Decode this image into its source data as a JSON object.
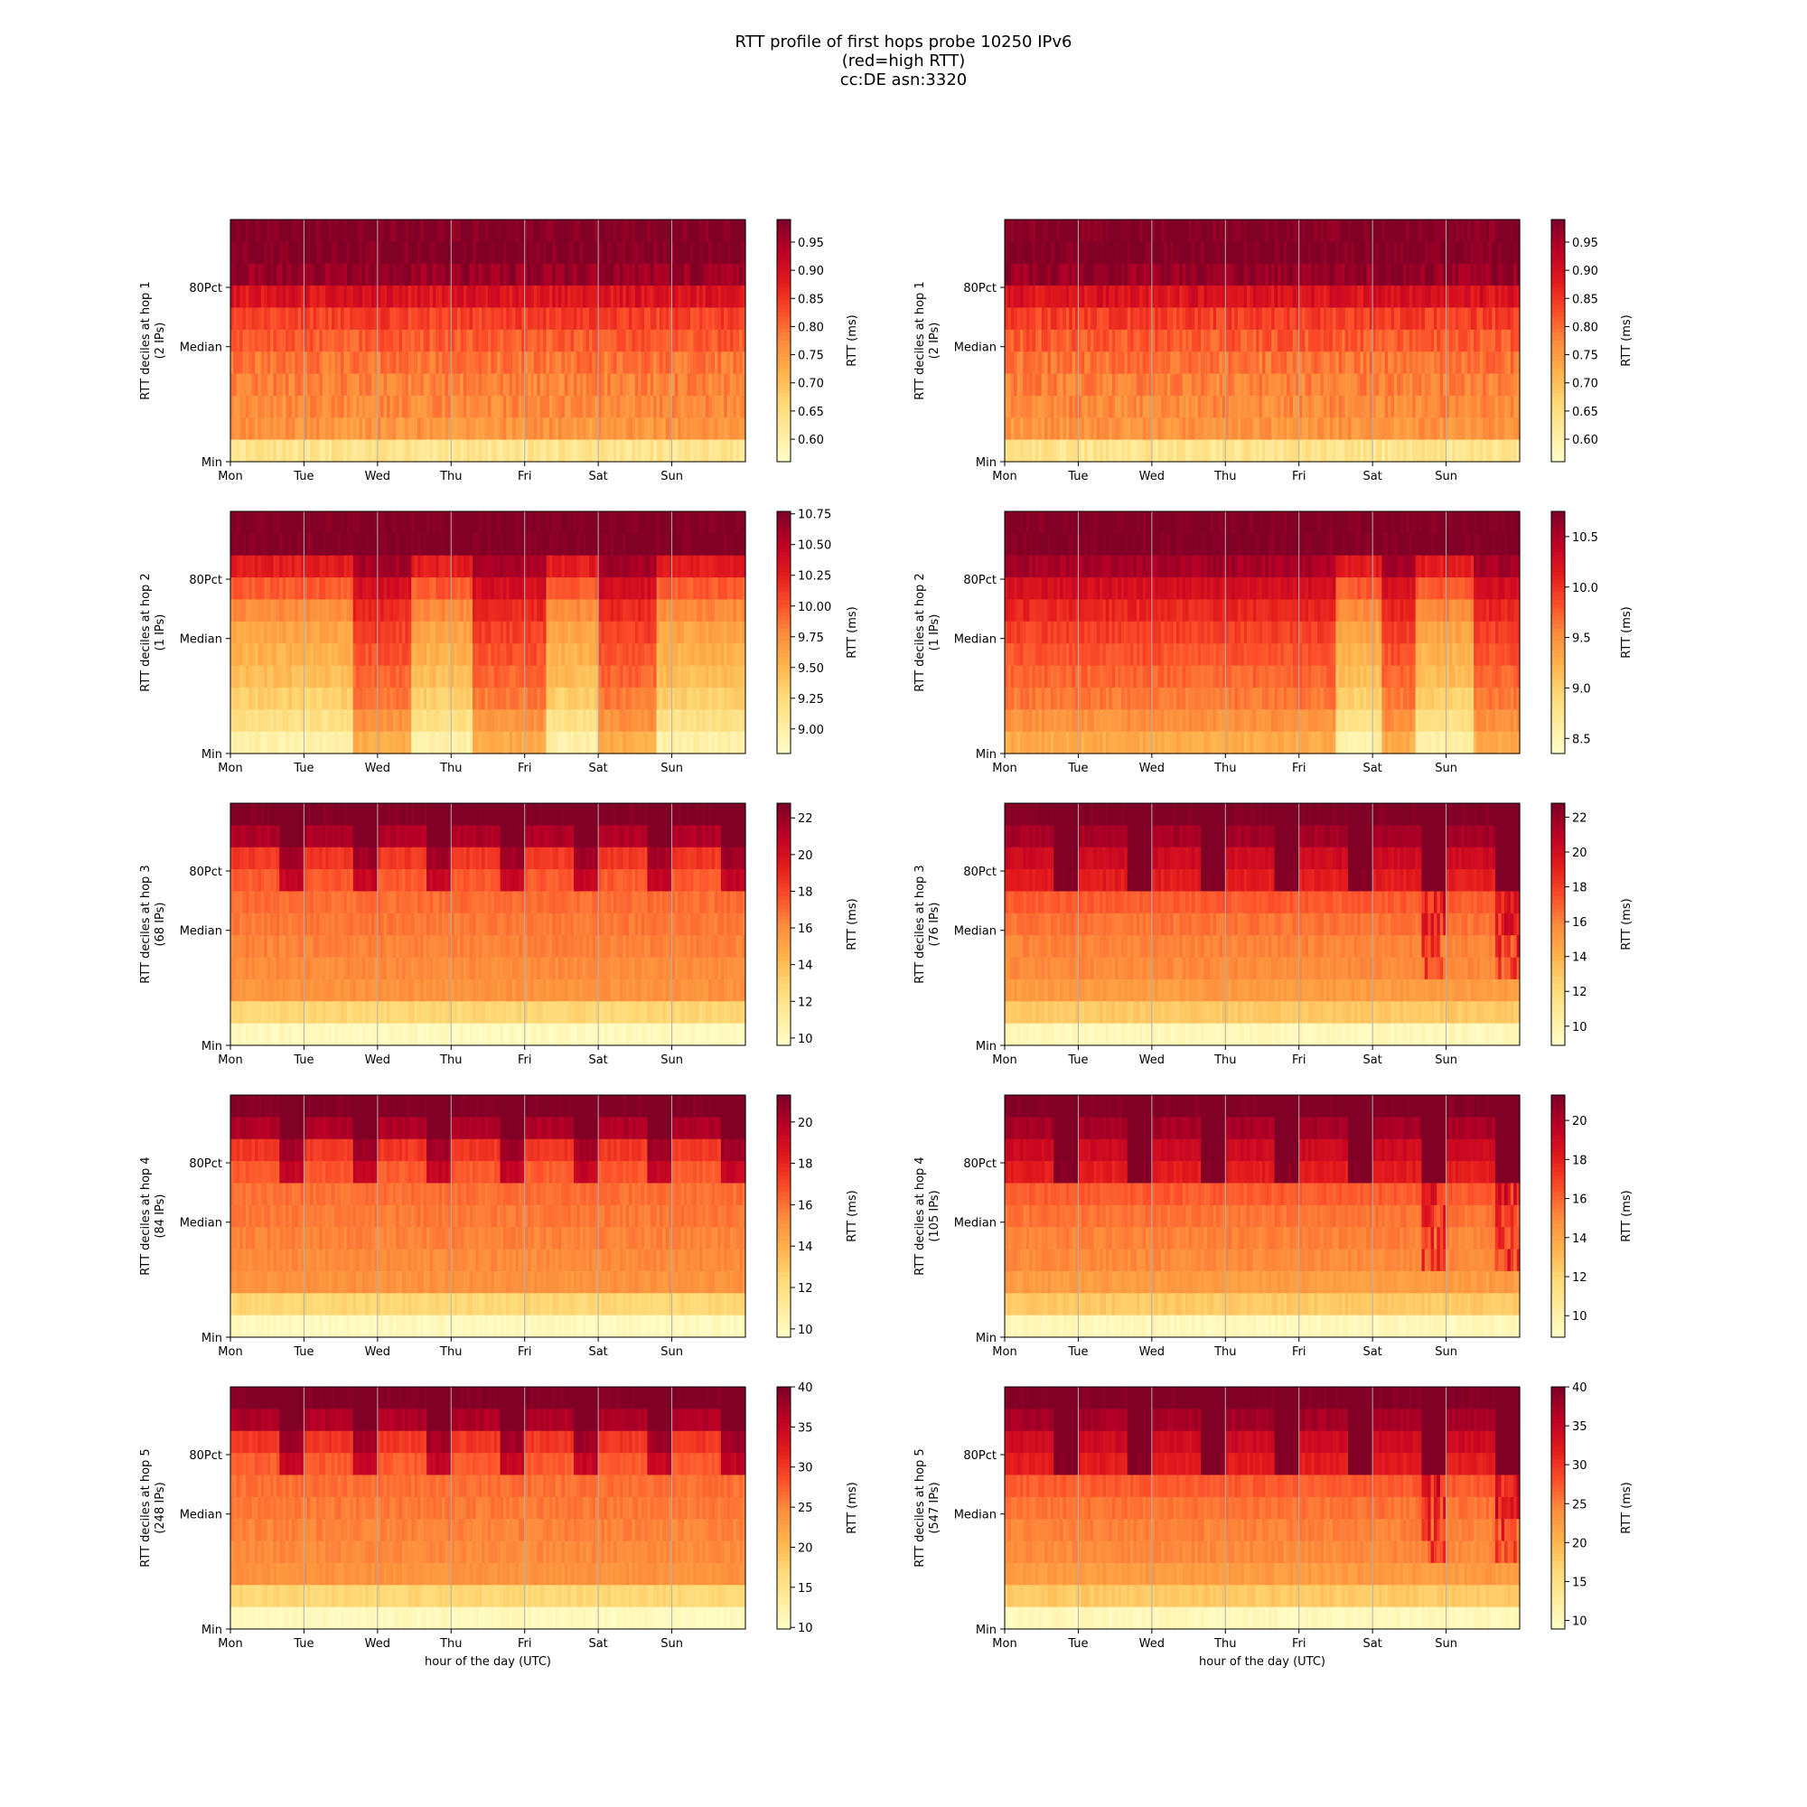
{
  "figure": {
    "title_lines": [
      "RTT profile of first hops probe 10250 IPv6",
      "(red=high RTT)",
      "cc:DE asn:3320"
    ],
    "xlabel": "hour of the day (UTC)",
    "colormap": "YlOrRd",
    "colormap_stops": [
      "#ffffcc",
      "#ffeda0",
      "#fed976",
      "#feb24c",
      "#fd8d3c",
      "#fc4e2a",
      "#e31a1c",
      "#bd0026",
      "#800026"
    ],
    "grid_color": "#b0b0b0"
  },
  "chart_data": [
    {
      "type": "heatmap",
      "hop": 1,
      "ylabel": "RTT deciles at hop 1",
      "ylabel2": "(2 IPs)",
      "x_ticks": [
        "Mon",
        "Tue",
        "Wed",
        "Thu",
        "Fri",
        "Sat",
        "Sun"
      ],
      "y_ticks": [
        "Min",
        "Median",
        "80Pct"
      ],
      "colorbar_label": "RTT (ms)",
      "colorbar_ticks": [
        "0.60",
        "0.65",
        "0.70",
        "0.75",
        "0.80",
        "0.85",
        "0.90",
        "0.95"
      ],
      "colorbar_range": [
        0.56,
        0.99
      ],
      "pattern": "steady"
    },
    {
      "type": "heatmap",
      "hop": 1,
      "ylabel": "RTT deciles at hop 1",
      "ylabel2": "(2 IPs)",
      "x_ticks": [
        "Mon",
        "Tue",
        "Wed",
        "Thu",
        "Fri",
        "Sat",
        "Sun"
      ],
      "y_ticks": [
        "Min",
        "Median",
        "80Pct"
      ],
      "colorbar_label": "RTT (ms)",
      "colorbar_ticks": [
        "0.60",
        "0.65",
        "0.70",
        "0.75",
        "0.80",
        "0.85",
        "0.90",
        "0.95"
      ],
      "colorbar_range": [
        0.56,
        0.99
      ],
      "pattern": "steady"
    },
    {
      "type": "heatmap",
      "hop": 2,
      "ylabel": "RTT deciles at hop 2",
      "ylabel2": "(1 IPs)",
      "x_ticks": [
        "Mon",
        "Tue",
        "Wed",
        "Thu",
        "Fri",
        "Sat",
        "Sun"
      ],
      "y_ticks": [
        "Min",
        "Median",
        "80Pct"
      ],
      "colorbar_label": "RTT (ms)",
      "colorbar_ticks": [
        "9.00",
        "9.25",
        "9.50",
        "9.75",
        "10.00",
        "10.25",
        "10.50",
        "10.75"
      ],
      "colorbar_range": [
        8.8,
        10.77
      ],
      "pattern": "blocks_a"
    },
    {
      "type": "heatmap",
      "hop": 2,
      "ylabel": "RTT deciles at hop 2",
      "ylabel2": "(1 IPs)",
      "x_ticks": [
        "Mon",
        "Tue",
        "Wed",
        "Thu",
        "Fri",
        "Sat",
        "Sun"
      ],
      "y_ticks": [
        "Min",
        "Median",
        "80Pct"
      ],
      "colorbar_label": "RTT (ms)",
      "colorbar_ticks": [
        "8.5",
        "9.0",
        "9.5",
        "10.0",
        "10.5"
      ],
      "colorbar_range": [
        8.35,
        10.75
      ],
      "pattern": "blocks_b"
    },
    {
      "type": "heatmap",
      "hop": 3,
      "ylabel": "RTT deciles at hop 3",
      "ylabel2": "(68 IPs)",
      "x_ticks": [
        "Mon",
        "Tue",
        "Wed",
        "Thu",
        "Fri",
        "Sat",
        "Sun"
      ],
      "y_ticks": [
        "Min",
        "Median",
        "80Pct"
      ],
      "colorbar_label": "RTT (ms)",
      "colorbar_ticks": [
        "10",
        "12",
        "14",
        "16",
        "18",
        "20",
        "22"
      ],
      "colorbar_range": [
        9.6,
        22.8
      ],
      "pattern": "diurnal_mild"
    },
    {
      "type": "heatmap",
      "hop": 3,
      "ylabel": "RTT deciles at hop 3",
      "ylabel2": "(76 IPs)",
      "x_ticks": [
        "Mon",
        "Tue",
        "Wed",
        "Thu",
        "Fri",
        "Sat",
        "Sun"
      ],
      "y_ticks": [
        "Min",
        "Median",
        "80Pct"
      ],
      "colorbar_label": "RTT (ms)",
      "colorbar_ticks": [
        "10",
        "12",
        "14",
        "16",
        "18",
        "20",
        "22"
      ],
      "colorbar_range": [
        8.9,
        22.8
      ],
      "pattern": "diurnal_strong"
    },
    {
      "type": "heatmap",
      "hop": 4,
      "ylabel": "RTT deciles at hop 4",
      "ylabel2": "(84 IPs)",
      "x_ticks": [
        "Mon",
        "Tue",
        "Wed",
        "Thu",
        "Fri",
        "Sat",
        "Sun"
      ],
      "y_ticks": [
        "Min",
        "Median",
        "80Pct"
      ],
      "colorbar_label": "RTT (ms)",
      "colorbar_ticks": [
        "10",
        "12",
        "14",
        "16",
        "18",
        "20"
      ],
      "colorbar_range": [
        9.6,
        21.3
      ],
      "pattern": "diurnal_mild"
    },
    {
      "type": "heatmap",
      "hop": 4,
      "ylabel": "RTT deciles at hop 4",
      "ylabel2": "(105 IPs)",
      "x_ticks": [
        "Mon",
        "Tue",
        "Wed",
        "Thu",
        "Fri",
        "Sat",
        "Sun"
      ],
      "y_ticks": [
        "Min",
        "Median",
        "80Pct"
      ],
      "colorbar_label": "RTT (ms)",
      "colorbar_ticks": [
        "10",
        "12",
        "14",
        "16",
        "18",
        "20"
      ],
      "colorbar_range": [
        8.9,
        21.3
      ],
      "pattern": "diurnal_strong"
    },
    {
      "type": "heatmap",
      "hop": 5,
      "ylabel": "RTT deciles at hop 5",
      "ylabel2": "(248 IPs)",
      "x_ticks": [
        "Mon",
        "Tue",
        "Wed",
        "Thu",
        "Fri",
        "Sat",
        "Sun"
      ],
      "y_ticks": [
        "Min",
        "Median",
        "80Pct"
      ],
      "colorbar_label": "RTT (ms)",
      "colorbar_ticks": [
        "10",
        "15",
        "20",
        "25",
        "30",
        "35",
        "40"
      ],
      "colorbar_range": [
        9.8,
        40
      ],
      "pattern": "diurnal_mild"
    },
    {
      "type": "heatmap",
      "hop": 5,
      "ylabel": "RTT deciles at hop 5",
      "ylabel2": "(547 IPs)",
      "x_ticks": [
        "Mon",
        "Tue",
        "Wed",
        "Thu",
        "Fri",
        "Sat",
        "Sun"
      ],
      "y_ticks": [
        "Min",
        "Median",
        "80Pct"
      ],
      "colorbar_label": "RTT (ms)",
      "colorbar_ticks": [
        "10",
        "15",
        "20",
        "25",
        "30",
        "35",
        "40"
      ],
      "colorbar_range": [
        8.9,
        40
      ],
      "pattern": "diurnal_strong"
    }
  ]
}
